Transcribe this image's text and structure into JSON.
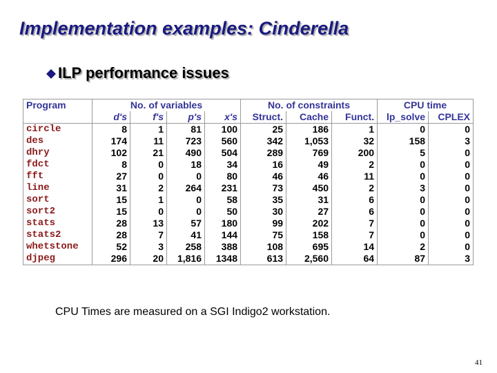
{
  "title": "Implementation examples: Cinderella",
  "bullet": "ILP performance issues",
  "table": {
    "groups": [
      "Program",
      "No. of variables",
      "No. of constraints",
      "CPU time"
    ],
    "subheaders": [
      "d's",
      "f's",
      "p's",
      "x's",
      "Struct.",
      "Cache",
      "Funct.",
      "lp_solve",
      "CPLEX"
    ],
    "rows": [
      [
        "circle",
        "8",
        "1",
        "81",
        "100",
        "25",
        "186",
        "1",
        "0",
        "0"
      ],
      [
        "des",
        "174",
        "11",
        "723",
        "560",
        "342",
        "1,053",
        "32",
        "158",
        "3"
      ],
      [
        "dhry",
        "102",
        "21",
        "490",
        "504",
        "289",
        "769",
        "200",
        "5",
        "0"
      ],
      [
        "fdct",
        "8",
        "0",
        "18",
        "34",
        "16",
        "49",
        "2",
        "0",
        "0"
      ],
      [
        "fft",
        "27",
        "0",
        "0",
        "80",
        "46",
        "46",
        "11",
        "0",
        "0"
      ],
      [
        "line",
        "31",
        "2",
        "264",
        "231",
        "73",
        "450",
        "2",
        "3",
        "0"
      ],
      [
        "sort",
        "15",
        "1",
        "0",
        "58",
        "35",
        "31",
        "6",
        "0",
        "0"
      ],
      [
        "sort2",
        "15",
        "0",
        "0",
        "50",
        "30",
        "27",
        "6",
        "0",
        "0"
      ],
      [
        "stats",
        "28",
        "13",
        "57",
        "180",
        "99",
        "202",
        "7",
        "0",
        "0"
      ],
      [
        "stats2",
        "28",
        "7",
        "41",
        "144",
        "75",
        "158",
        "7",
        "0",
        "0"
      ],
      [
        "whetstone",
        "52",
        "3",
        "258",
        "388",
        "108",
        "695",
        "14",
        "2",
        "0"
      ],
      [
        "djpeg",
        "296",
        "20",
        "1,816",
        "1348",
        "613",
        "2,560",
        "64",
        "87",
        "3"
      ]
    ]
  },
  "footnote": "CPU Times are measured on a SGI Indigo2 workstation.",
  "page_number": "41"
}
